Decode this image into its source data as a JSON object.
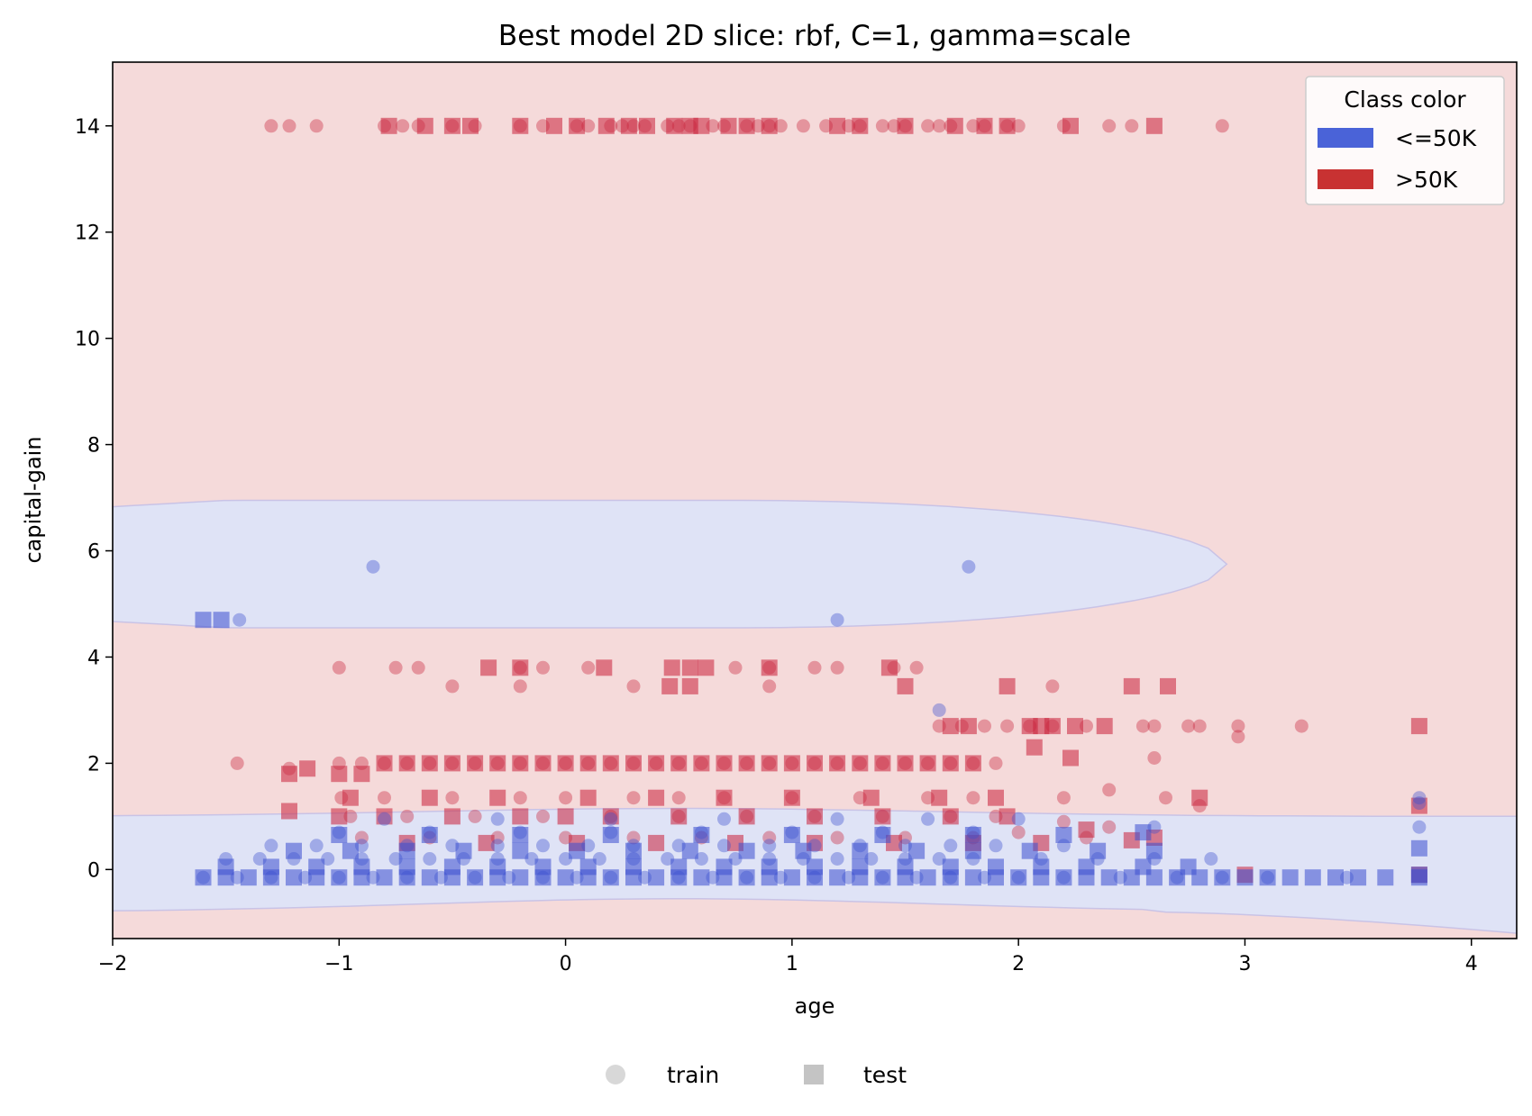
{
  "chart_data": {
    "type": "scatter",
    "title": "Best model 2D slice: rbf, C=1, gamma=scale",
    "xlabel": "age",
    "ylabel": "capital-gain",
    "xlim": [
      -2,
      4.2
    ],
    "ylim": [
      -1.3,
      15.2
    ],
    "xticks": [
      -2,
      -1,
      0,
      1,
      2,
      3,
      4
    ],
    "xtick_labels": [
      "−2",
      "−1",
      "0",
      "1",
      "2",
      "3",
      "4"
    ],
    "yticks": [
      0,
      2,
      4,
      6,
      8,
      10,
      12,
      14
    ],
    "ytick_labels": [
      "0",
      "2",
      "4",
      "6",
      "8",
      "10",
      "12",
      "14"
    ],
    "grid": false,
    "background_region": {
      "class": ">50K",
      "color": "#f5dada"
    },
    "decision_regions": [
      {
        "class": "<=50K",
        "color": "#dfe3f6",
        "shape": "upper band",
        "x_range": [
          -2,
          2.92
        ],
        "y_center": 5.75,
        "y_half_height": 1.2
      },
      {
        "class": "<=50K",
        "color": "#dfe3f6",
        "shape": "lower band",
        "x_range": [
          -2,
          4.2
        ],
        "y_top": 1.05,
        "y_bottom": -0.8
      }
    ],
    "legend_class": {
      "title": "Class color",
      "position": "top-right",
      "entries": [
        {
          "label": "<=50K",
          "color": "#4a63d8"
        },
        {
          "label": ">50K",
          "color": "#c83232"
        }
      ]
    },
    "legend_split": {
      "position": "bottom-center",
      "entries": [
        {
          "label": "train",
          "marker": "circle",
          "color": "#d8d8d8"
        },
        {
          "label": "test",
          "marker": "square",
          "color": "#c4c4c4"
        }
      ]
    },
    "series": [
      {
        "class": ">50K",
        "split": "train",
        "marker": "circle",
        "color": "#c8213a",
        "x": [
          -1.3,
          -1.22,
          -1.1,
          -0.8,
          -0.72,
          -0.65,
          -0.5,
          -0.4,
          -0.2,
          -0.1,
          0.05,
          0.1,
          0.2,
          0.25,
          0.3,
          0.35,
          0.45,
          0.5,
          0.55,
          0.65,
          0.7,
          0.8,
          0.85,
          0.9,
          0.95,
          1.05,
          1.15,
          1.25,
          1.3,
          1.4,
          1.45,
          1.5,
          1.6,
          1.65,
          1.7,
          1.8,
          1.85,
          1.95,
          2.0,
          2.2,
          2.4,
          2.5,
          2.9,
          -1.0,
          -0.75,
          -0.65,
          0.1,
          -0.2,
          -0.1,
          1.1,
          1.2,
          1.45,
          1.55,
          0.75,
          0.9,
          -0.5,
          -0.2,
          0.3,
          0.9,
          2.15,
          1.65,
          1.75,
          1.85,
          1.95,
          2.05,
          2.15,
          2.3,
          2.55,
          2.6,
          2.75,
          2.8,
          2.97,
          3.25,
          2.97,
          2.6,
          -1.45,
          -1.22,
          -1.0,
          -0.9,
          -0.8,
          -0.7,
          -0.6,
          -0.5,
          -0.4,
          -0.3,
          -0.2,
          -0.1,
          0.0,
          0.1,
          0.2,
          0.3,
          0.4,
          0.5,
          0.6,
          0.7,
          0.8,
          0.9,
          1.0,
          1.1,
          1.2,
          1.3,
          1.4,
          1.5,
          1.6,
          1.7,
          1.8,
          1.9,
          -0.99,
          -0.8,
          -0.5,
          -0.2,
          0.0,
          0.3,
          0.5,
          0.7,
          1.0,
          1.3,
          1.6,
          1.8,
          2.2,
          2.4,
          2.65,
          2.8,
          -0.95,
          -0.7,
          -0.4,
          -0.1,
          0.2,
          0.5,
          0.8,
          1.1,
          1.4,
          1.7,
          1.9,
          2.2,
          2.4,
          -0.9,
          -0.6,
          -0.3,
          0.0,
          0.3,
          0.6,
          0.9,
          1.2,
          1.5,
          1.8,
          2.0,
          2.3
        ],
        "y": [
          14,
          14,
          14,
          14,
          14,
          14,
          14,
          14,
          14,
          14,
          14,
          14,
          14,
          14,
          14,
          14,
          14,
          14,
          14,
          14,
          14,
          14,
          14,
          14,
          14,
          14,
          14,
          14,
          14,
          14,
          14,
          14,
          14,
          14,
          14,
          14,
          14,
          14,
          14,
          14,
          14,
          14,
          14,
          3.8,
          3.8,
          3.8,
          3.8,
          3.8,
          3.8,
          3.8,
          3.8,
          3.8,
          3.8,
          3.8,
          3.8,
          3.45,
          3.45,
          3.45,
          3.45,
          3.45,
          2.7,
          2.7,
          2.7,
          2.7,
          2.7,
          2.7,
          2.7,
          2.7,
          2.7,
          2.7,
          2.7,
          2.7,
          2.7,
          2.5,
          2.1,
          2.0,
          1.9,
          2.0,
          2.0,
          2.0,
          2.0,
          2.0,
          2.0,
          2.0,
          2.0,
          2.0,
          2.0,
          2.0,
          2.0,
          2.0,
          2.0,
          2.0,
          2.0,
          2.0,
          2.0,
          2.0,
          2.0,
          2.0,
          2.0,
          2.0,
          2.0,
          2.0,
          2.0,
          2.0,
          2.0,
          2.0,
          2.0,
          1.35,
          1.35,
          1.35,
          1.35,
          1.35,
          1.35,
          1.35,
          1.35,
          1.35,
          1.35,
          1.35,
          1.35,
          1.35,
          1.5,
          1.35,
          1.2,
          1.0,
          1.0,
          1.0,
          1.0,
          1.0,
          1.0,
          1.0,
          1.0,
          1.0,
          1.0,
          1.0,
          0.9,
          0.8,
          0.6,
          0.6,
          0.6,
          0.6,
          0.6,
          0.6,
          0.6,
          0.6,
          0.6,
          0.6,
          0.7,
          0.6
        ]
      },
      {
        "class": ">50K",
        "split": "test",
        "marker": "square",
        "color": "#c8213a",
        "x": [
          -0.78,
          -0.62,
          -0.5,
          -0.42,
          -0.2,
          -0.05,
          0.05,
          0.18,
          0.28,
          0.36,
          0.48,
          0.55,
          0.6,
          0.72,
          0.8,
          0.9,
          1.2,
          1.3,
          1.5,
          1.72,
          1.85,
          1.95,
          2.23,
          2.6,
          -0.34,
          -0.2,
          0.17,
          0.47,
          0.55,
          0.62,
          0.9,
          1.43,
          0.46,
          0.55,
          1.5,
          1.95,
          2.5,
          2.66,
          1.7,
          1.78,
          2.05,
          2.1,
          2.15,
          2.25,
          2.38,
          3.77,
          2.07,
          2.23,
          -1.22,
          -1.14,
          -1.0,
          -0.9,
          -0.8,
          -0.7,
          -0.6,
          -0.5,
          -0.4,
          -0.3,
          -0.2,
          -0.1,
          0.0,
          0.1,
          0.2,
          0.3,
          0.4,
          0.5,
          0.6,
          0.7,
          0.8,
          0.9,
          1.0,
          1.1,
          1.2,
          1.3,
          1.4,
          1.5,
          1.6,
          1.7,
          1.8,
          -0.95,
          -0.6,
          -0.3,
          0.1,
          0.4,
          0.7,
          1.0,
          1.35,
          1.65,
          1.9,
          2.8,
          3.77,
          -1.22,
          -1.0,
          -0.8,
          -0.5,
          -0.2,
          0.0,
          0.2,
          0.5,
          0.8,
          1.1,
          1.4,
          1.7,
          1.95,
          2.3,
          2.5,
          -0.7,
          -0.35,
          0.05,
          0.4,
          0.75,
          1.1,
          1.45,
          1.8,
          2.1,
          2.6,
          3.0,
          3.77
        ],
        "y": [
          14,
          14,
          14,
          14,
          14,
          14,
          14,
          14,
          14,
          14,
          14,
          14,
          14,
          14,
          14,
          14,
          14,
          14,
          14,
          14,
          14,
          14,
          14,
          14,
          3.8,
          3.8,
          3.8,
          3.8,
          3.8,
          3.8,
          3.8,
          3.8,
          3.45,
          3.45,
          3.45,
          3.45,
          3.45,
          3.45,
          2.7,
          2.7,
          2.7,
          2.7,
          2.7,
          2.7,
          2.7,
          2.7,
          2.3,
          2.1,
          1.8,
          1.9,
          1.8,
          1.8,
          2.0,
          2.0,
          2.0,
          2.0,
          2.0,
          2.0,
          2.0,
          2.0,
          2.0,
          2.0,
          2.0,
          2.0,
          2.0,
          2.0,
          2.0,
          2.0,
          2.0,
          2.0,
          2.0,
          2.0,
          2.0,
          2.0,
          2.0,
          2.0,
          2.0,
          2.0,
          2.0,
          1.35,
          1.35,
          1.35,
          1.35,
          1.35,
          1.35,
          1.35,
          1.35,
          1.35,
          1.35,
          1.35,
          1.2,
          1.1,
          1.0,
          1.0,
          1.0,
          1.0,
          1.0,
          1.0,
          1.0,
          1.0,
          1.0,
          1.0,
          1.0,
          1.0,
          0.75,
          0.55,
          0.5,
          0.5,
          0.5,
          0.5,
          0.5,
          0.5,
          0.5,
          0.5,
          0.5,
          0.6,
          -0.1,
          -0.1
        ]
      },
      {
        "class": "<=50K",
        "split": "train",
        "marker": "circle",
        "color": "#3a4fd0",
        "x": [
          -0.85,
          1.78,
          1.2,
          -1.44,
          1.65,
          -1.6,
          -1.45,
          -1.3,
          -1.15,
          -1.0,
          -0.85,
          -0.7,
          -0.55,
          -0.4,
          -0.25,
          -0.1,
          0.05,
          0.2,
          0.35,
          0.5,
          0.65,
          0.8,
          0.95,
          1.1,
          1.25,
          1.4,
          1.55,
          1.7,
          1.85,
          2.0,
          2.2,
          2.45,
          2.7,
          2.9,
          3.1,
          3.45,
          -1.5,
          -1.35,
          -1.2,
          -1.05,
          -0.9,
          -0.75,
          -0.6,
          -0.45,
          -0.3,
          -0.15,
          0.0,
          0.15,
          0.3,
          0.45,
          0.6,
          0.75,
          0.9,
          1.05,
          1.2,
          1.35,
          1.5,
          1.65,
          1.8,
          2.1,
          2.35,
          2.6,
          2.85,
          -1.3,
          -1.1,
          -0.9,
          -0.7,
          -0.5,
          -0.3,
          -0.1,
          0.1,
          0.3,
          0.5,
          0.7,
          0.9,
          1.1,
          1.3,
          1.5,
          1.7,
          1.9,
          2.2,
          2.6,
          -1.0,
          -0.6,
          -0.2,
          0.2,
          0.6,
          1.0,
          1.4,
          1.8,
          3.77,
          3.77,
          -0.8,
          -0.3,
          0.2,
          0.7,
          1.2,
          1.6,
          2.0,
          3.77
        ],
        "y": [
          5.7,
          5.7,
          4.7,
          4.7,
          3.0,
          -0.15,
          -0.15,
          -0.15,
          -0.15,
          -0.15,
          -0.15,
          -0.15,
          -0.15,
          -0.15,
          -0.15,
          -0.15,
          -0.15,
          -0.15,
          -0.15,
          -0.15,
          -0.15,
          -0.15,
          -0.15,
          -0.15,
          -0.15,
          -0.15,
          -0.15,
          -0.15,
          -0.15,
          -0.15,
          -0.15,
          -0.15,
          -0.15,
          -0.15,
          -0.15,
          -0.15,
          0.2,
          0.2,
          0.2,
          0.2,
          0.2,
          0.2,
          0.2,
          0.2,
          0.2,
          0.2,
          0.2,
          0.2,
          0.2,
          0.2,
          0.2,
          0.2,
          0.2,
          0.2,
          0.2,
          0.2,
          0.2,
          0.2,
          0.2,
          0.2,
          0.2,
          0.2,
          0.2,
          0.45,
          0.45,
          0.45,
          0.45,
          0.45,
          0.45,
          0.45,
          0.45,
          0.45,
          0.45,
          0.45,
          0.45,
          0.45,
          0.45,
          0.45,
          0.45,
          0.45,
          0.45,
          0.8,
          0.7,
          0.7,
          0.7,
          0.7,
          0.7,
          0.7,
          0.7,
          0.7,
          0.8,
          1.35,
          0.95,
          0.95,
          0.95,
          0.95,
          0.95,
          0.95,
          0.95,
          1.25
        ]
      },
      {
        "class": "<=50K",
        "split": "test",
        "marker": "square",
        "color": "#3a4fd0",
        "x": [
          -1.6,
          -1.52,
          -1.6,
          -1.5,
          -1.4,
          -1.3,
          -1.2,
          -1.1,
          -1.0,
          -0.9,
          -0.8,
          -0.7,
          -0.6,
          -0.5,
          -0.4,
          -0.3,
          -0.2,
          -0.1,
          0.0,
          0.1,
          0.2,
          0.3,
          0.4,
          0.5,
          0.6,
          0.7,
          0.8,
          0.9,
          1.0,
          1.1,
          1.2,
          1.3,
          1.4,
          1.5,
          1.6,
          1.7,
          1.8,
          1.9,
          2.0,
          2.1,
          2.2,
          2.3,
          2.4,
          2.5,
          2.6,
          2.7,
          2.8,
          2.9,
          3.0,
          3.1,
          3.2,
          3.3,
          3.4,
          3.5,
          3.62,
          3.77,
          -1.5,
          -1.3,
          -1.1,
          -0.9,
          -0.7,
          -0.5,
          -0.3,
          -0.1,
          0.1,
          0.3,
          0.5,
          0.7,
          0.9,
          1.1,
          1.3,
          1.5,
          1.7,
          1.9,
          2.1,
          2.3,
          2.55,
          2.75,
          -1.2,
          -0.95,
          -0.7,
          -0.45,
          -0.2,
          0.05,
          0.3,
          0.55,
          0.8,
          1.05,
          1.3,
          1.55,
          1.8,
          2.05,
          2.35,
          2.6,
          3.77,
          -1.0,
          -0.6,
          -0.2,
          0.2,
          0.6,
          1.0,
          1.4,
          1.8,
          2.2,
          2.55,
          3.77
        ],
        "y": [
          4.7,
          4.7,
          -0.15,
          -0.15,
          -0.15,
          -0.15,
          -0.15,
          -0.15,
          -0.15,
          -0.15,
          -0.15,
          -0.15,
          -0.15,
          -0.15,
          -0.15,
          -0.15,
          -0.15,
          -0.15,
          -0.15,
          -0.15,
          -0.15,
          -0.15,
          -0.15,
          -0.15,
          -0.15,
          -0.15,
          -0.15,
          -0.15,
          -0.15,
          -0.15,
          -0.15,
          -0.15,
          -0.15,
          -0.15,
          -0.15,
          -0.15,
          -0.15,
          -0.15,
          -0.15,
          -0.15,
          -0.15,
          -0.15,
          -0.15,
          -0.15,
          -0.15,
          -0.15,
          -0.15,
          -0.15,
          -0.15,
          -0.15,
          -0.15,
          -0.15,
          -0.15,
          -0.15,
          -0.15,
          -0.15,
          0.05,
          0.05,
          0.05,
          0.05,
          0.05,
          0.05,
          0.05,
          0.05,
          0.05,
          0.05,
          0.05,
          0.05,
          0.05,
          0.05,
          0.05,
          0.05,
          0.05,
          0.05,
          0.05,
          0.05,
          0.05,
          0.05,
          0.35,
          0.35,
          0.35,
          0.35,
          0.35,
          0.35,
          0.35,
          0.35,
          0.35,
          0.35,
          0.35,
          0.35,
          0.35,
          0.35,
          0.35,
          0.35,
          0.4,
          0.65,
          0.65,
          0.65,
          0.65,
          0.65,
          0.65,
          0.65,
          0.65,
          0.65,
          0.7,
          -0.1
        ]
      }
    ]
  }
}
